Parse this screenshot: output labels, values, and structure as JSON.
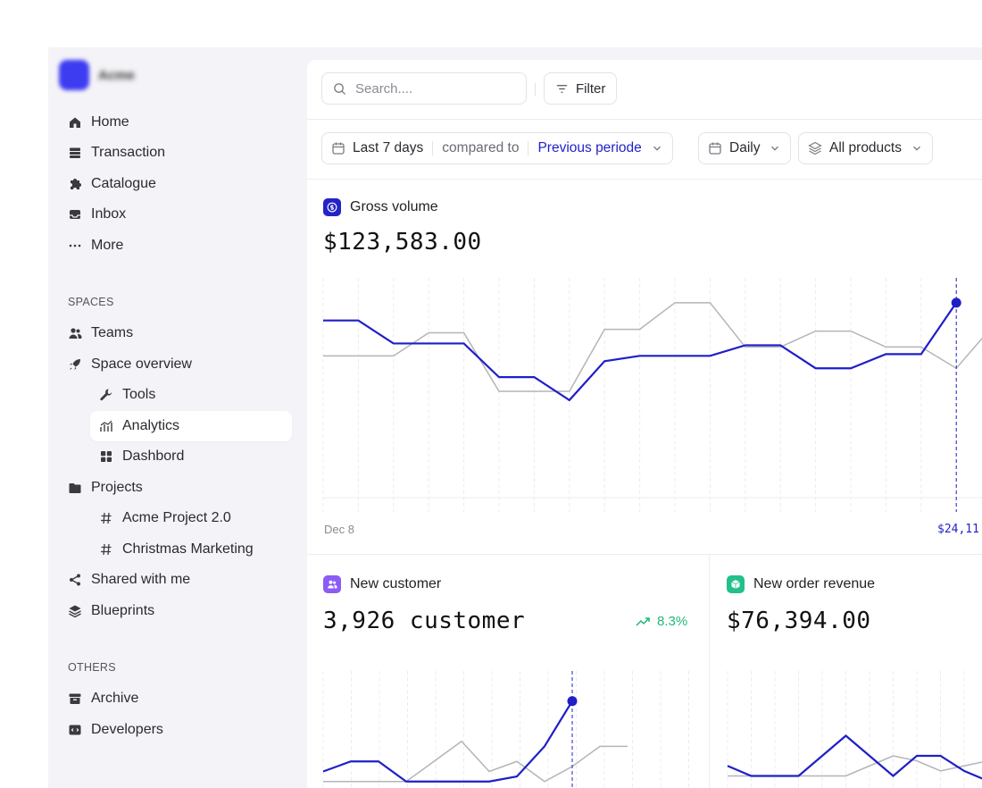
{
  "brand": {
    "name": "Acme",
    "color": "#3d3cf0"
  },
  "sidebar": {
    "main_items": [
      {
        "label": "Home",
        "icon": "home-icon"
      },
      {
        "label": "Transaction",
        "icon": "stack-icon"
      },
      {
        "label": "Catalogue",
        "icon": "puzzle-icon"
      },
      {
        "label": "Inbox",
        "icon": "inbox-icon"
      },
      {
        "label": "More",
        "icon": "more-icon"
      }
    ],
    "spaces_label": "SPACES",
    "spaces": [
      {
        "label": "Teams",
        "icon": "users-icon"
      },
      {
        "label": "Space overview",
        "icon": "rocket-icon"
      },
      {
        "label": "Tools",
        "icon": "wrench-icon"
      },
      {
        "label": "Analytics",
        "icon": "analytics-icon",
        "active": true
      },
      {
        "label": "Dashbord",
        "icon": "grid-icon"
      },
      {
        "label": "Projects",
        "icon": "folder-icon"
      },
      {
        "label": "Acme Project 2.0",
        "icon": "hash-icon"
      },
      {
        "label": "Christmas Marketing",
        "icon": "hash-icon"
      },
      {
        "label": "Shared with me",
        "icon": "share-icon"
      },
      {
        "label": "Blueprints",
        "icon": "layers-icon"
      }
    ],
    "others_label": "OTHERS",
    "others": [
      {
        "label": "Archive",
        "icon": "archive-icon"
      },
      {
        "label": "Developers",
        "icon": "code-icon"
      }
    ]
  },
  "topbar": {
    "search_placeholder": "Search....",
    "filter_label": "Filter"
  },
  "filters": {
    "range": "Last 7 days",
    "compared_to": "compared to",
    "comparison": "Previous periode",
    "interval": "Daily",
    "products": "All products"
  },
  "gross_volume": {
    "title": "Gross volume",
    "value": "$123,583.00",
    "x_start": "Dec 8",
    "hover_value": "$24,11"
  },
  "new_customer": {
    "title": "New customer",
    "value": "3,926 customer",
    "trend": "8.3%"
  },
  "new_order_revenue": {
    "title": "New order revenue",
    "value": "$76,394.00"
  },
  "colors": {
    "accent": "#1f1fc8",
    "comparison": "#b4b4ba",
    "positive": "#1fb97a",
    "customer_badge": "#8b5cf6",
    "revenue_badge": "#22c08a"
  },
  "chart_data": [
    {
      "type": "line",
      "title": "Gross volume",
      "series": [
        {
          "values": [
            100,
            100,
            87,
            87,
            87,
            68,
            68,
            55,
            77,
            80,
            80,
            80,
            86,
            86,
            73,
            73,
            81,
            81,
            110
          ]
        },
        {
          "values": [
            80,
            80,
            80,
            93,
            93,
            60,
            60,
            60,
            95,
            95,
            110,
            110,
            85,
            85,
            94,
            94,
            85,
            85,
            73,
            96,
            58
          ]
        }
      ],
      "grid": true
    },
    {
      "type": "line",
      "title": "New customer",
      "series": [
        {
          "values": [
            20,
            30,
            30,
            10,
            10,
            10,
            10,
            15,
            45,
            90
          ]
        },
        {
          "values": [
            10,
            10,
            10,
            10,
            30,
            50,
            20,
            30,
            10,
            25,
            45,
            45
          ]
        }
      ],
      "grid": true
    },
    {
      "type": "line",
      "title": "New order revenue",
      "series": [
        {
          "values": [
            30,
            20,
            20,
            20,
            40,
            60,
            40,
            20,
            40,
            40,
            25,
            15
          ]
        },
        {
          "values": [
            20,
            20,
            20,
            20,
            20,
            20,
            30,
            40,
            35,
            25,
            30,
            35
          ]
        }
      ],
      "grid": true
    }
  ]
}
